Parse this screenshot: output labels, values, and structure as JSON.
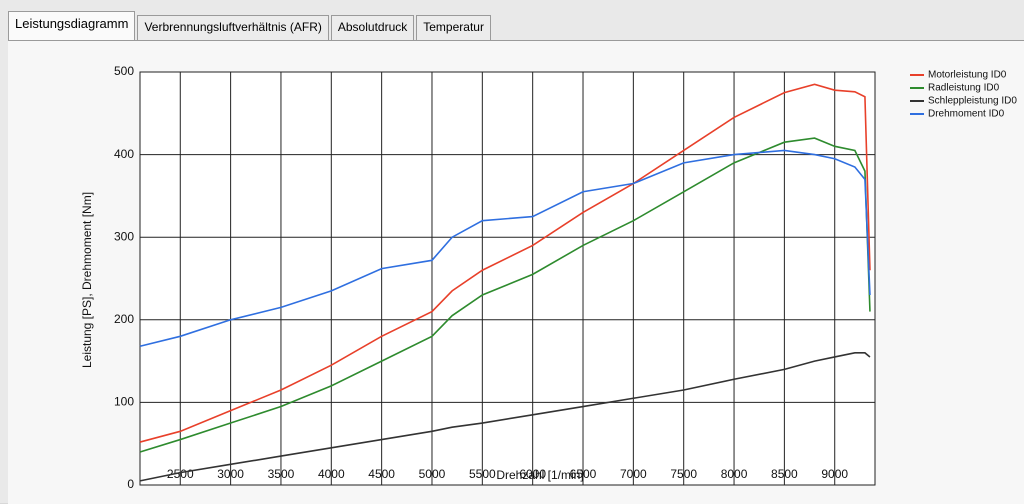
{
  "tabs": [
    "Leistungsdiagramm",
    "Verbrennungsluftverhältnis (AFR)",
    "Absolutdruck",
    "Temperatur"
  ],
  "chart_data": {
    "type": "line",
    "x_label": "Drehzahl [1/min]",
    "y_label": "Leistung [PS], Drehmoment [Nm]",
    "x": [
      2100,
      2500,
      3000,
      3500,
      4000,
      4500,
      5000,
      5200,
      5500,
      6000,
      6500,
      7000,
      7500,
      8000,
      8500,
      8800,
      9000,
      9200,
      9300,
      9350
    ],
    "series": [
      {
        "name": "Motorleistung ID0",
        "color": "#e8402a",
        "values": [
          52,
          65,
          90,
          115,
          145,
          180,
          210,
          235,
          260,
          290,
          330,
          365,
          405,
          445,
          475,
          485,
          478,
          476,
          470,
          260
        ]
      },
      {
        "name": "Radleistung ID0",
        "color": "#2e8b2e",
        "values": [
          40,
          55,
          75,
          95,
          120,
          150,
          180,
          205,
          230,
          255,
          290,
          320,
          355,
          390,
          415,
          420,
          410,
          405,
          380,
          210
        ]
      },
      {
        "name": "Schleppleistung ID0",
        "color": "#333333",
        "values": [
          5,
          15,
          25,
          35,
          45,
          55,
          65,
          70,
          75,
          85,
          95,
          105,
          115,
          128,
          140,
          150,
          155,
          160,
          160,
          155
        ]
      },
      {
        "name": "Drehmoment ID0",
        "color": "#2f6fe0",
        "values": [
          168,
          180,
          200,
          215,
          235,
          262,
          272,
          300,
          320,
          325,
          355,
          365,
          390,
          400,
          405,
          400,
          395,
          385,
          370,
          230
        ]
      }
    ],
    "xlim": [
      2100,
      9400
    ],
    "ylim": [
      0,
      500
    ],
    "xticks": [
      2500,
      3000,
      3500,
      4000,
      4500,
      5000,
      5500,
      6000,
      6500,
      7000,
      7500,
      8000,
      8500,
      9000
    ],
    "yticks": [
      0,
      100,
      200,
      300,
      400,
      500
    ],
    "grid": true,
    "legend": "right"
  }
}
